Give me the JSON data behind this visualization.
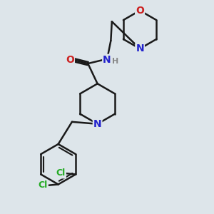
{
  "bg_color": "#dde5ea",
  "bond_color": "#1a1a1a",
  "bond_width": 1.8,
  "atom_colors": {
    "N": "#2222cc",
    "O": "#cc2222",
    "Cl": "#22aa22",
    "H": "#888888"
  },
  "font_size": 10,
  "fig_size": [
    3.0,
    3.0
  ],
  "dpi": 100
}
